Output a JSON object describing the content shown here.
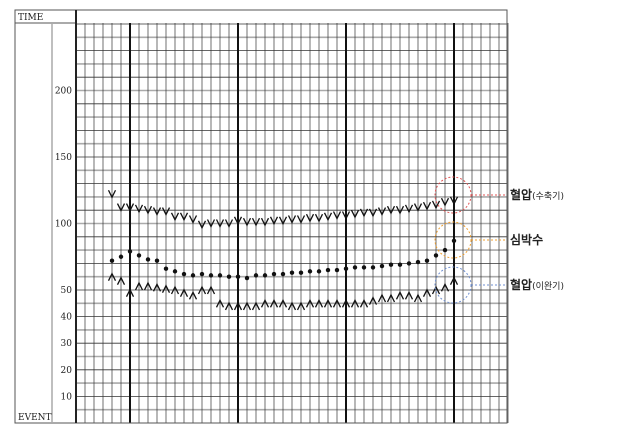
{
  "chart_data": {
    "type": "line",
    "header_label": "TIME",
    "footer_label": "EVENT",
    "ylim": [
      0,
      250
    ],
    "y_scale": "piecewise: 0-50 expanded (5 per row), 50-250 (10 per row)",
    "yticks": [
      10,
      20,
      30,
      40,
      50,
      100,
      150,
      200
    ],
    "grid": true,
    "series": [
      {
        "name": "혈압(수축기)",
        "marker": "v",
        "color": "#e05555",
        "values": [
          122,
          112,
          112,
          111,
          110,
          109,
          109,
          105,
          105,
          103,
          99,
          100,
          100,
          100,
          102,
          101,
          101,
          101,
          102,
          102,
          103,
          103,
          104,
          104,
          105,
          106,
          106,
          107,
          108,
          108,
          109,
          110,
          110,
          111,
          112,
          113,
          114,
          116,
          117
        ]
      },
      {
        "name": "심박수",
        "marker": "dot",
        "color": "#f0a030",
        "values": [
          72,
          75,
          79,
          76,
          73,
          72,
          66,
          64,
          62,
          61,
          62,
          61,
          61,
          60,
          60,
          59,
          61,
          61,
          62,
          62,
          63,
          63,
          64,
          64,
          65,
          65,
          66,
          67,
          67,
          67,
          68,
          69,
          69,
          70,
          71,
          72,
          76,
          80,
          87
        ]
      },
      {
        "name": "혈압(이완기)",
        "marker": "^",
        "color": "#6f8fd0",
        "values": [
          60,
          57,
          49,
          53,
          53,
          52,
          51,
          50,
          49,
          48,
          50,
          50,
          45,
          44,
          44,
          44,
          44,
          45,
          45,
          45,
          44,
          44,
          45,
          45,
          45,
          45,
          45,
          45,
          45,
          46,
          47,
          47,
          48,
          48,
          47,
          49,
          50,
          52,
          57
        ]
      }
    ],
    "legend_labels": [
      {
        "main": "혈압",
        "sub": "(수축기)"
      },
      {
        "main": "심박수",
        "sub": ""
      },
      {
        "main": "혈압",
        "sub": "(이완기)"
      }
    ]
  }
}
